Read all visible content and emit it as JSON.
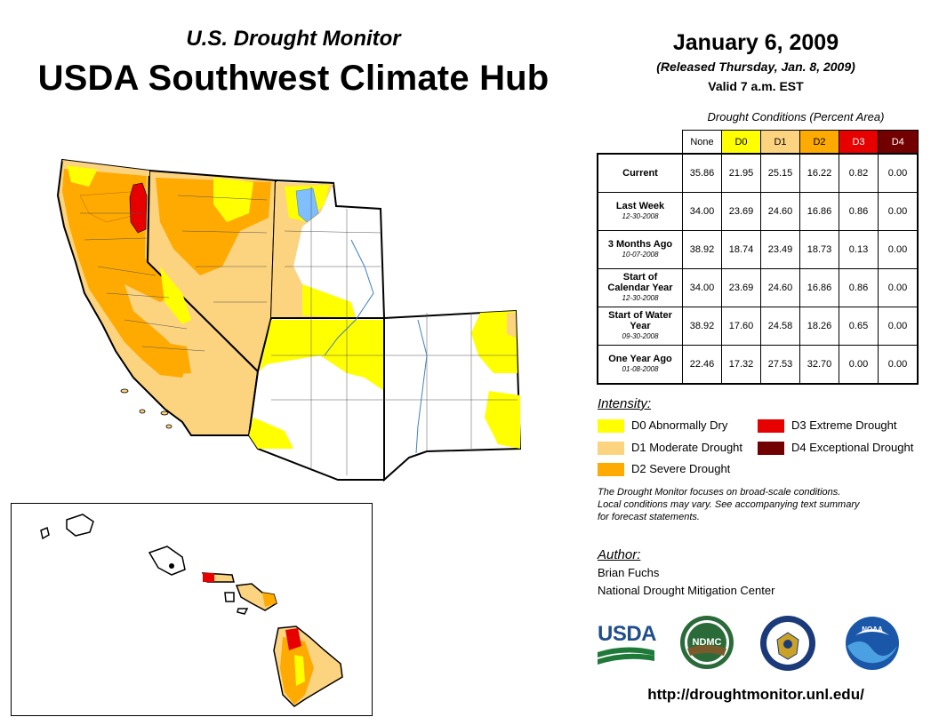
{
  "header": {
    "subtitle": "U.S. Drought Monitor",
    "title": "USDA Southwest Climate Hub",
    "date": "January 6, 2009",
    "released": "(Released Thursday, Jan. 8, 2009)",
    "valid": "Valid 7 a.m. EST"
  },
  "table": {
    "caption": "Drought Conditions (Percent Area)",
    "columns": [
      "None",
      "D0",
      "D1",
      "D2",
      "D3",
      "D4"
    ],
    "column_colors": [
      "#ffffff",
      "#ffff00",
      "#fcd37f",
      "#ffaa00",
      "#e60000",
      "#730000"
    ],
    "rows": [
      {
        "label": "Current",
        "sub": "",
        "values": [
          "35.86",
          "21.95",
          "25.15",
          "16.22",
          "0.82",
          "0.00"
        ]
      },
      {
        "label": "Last Week",
        "sub": "12-30-2008",
        "values": [
          "34.00",
          "23.69",
          "24.60",
          "16.86",
          "0.86",
          "0.00"
        ]
      },
      {
        "label": "3 Months Ago",
        "sub": "10-07-2008",
        "values": [
          "38.92",
          "18.74",
          "23.49",
          "18.73",
          "0.13",
          "0.00"
        ]
      },
      {
        "label": "Start of Calendar Year",
        "sub": "12-30-2008",
        "values": [
          "34.00",
          "23.69",
          "24.60",
          "16.86",
          "0.86",
          "0.00"
        ]
      },
      {
        "label": "Start of Water Year",
        "sub": "09-30-2008",
        "values": [
          "38.92",
          "17.60",
          "24.58",
          "18.26",
          "0.65",
          "0.00"
        ]
      },
      {
        "label": "One Year Ago",
        "sub": "01-08-2008",
        "values": [
          "22.46",
          "17.32",
          "27.53",
          "32.70",
          "0.00",
          "0.00"
        ]
      }
    ]
  },
  "legend": {
    "title": "Intensity:",
    "items": [
      {
        "label": "D0 Abnormally Dry",
        "color": "#ffff00"
      },
      {
        "label": "D1 Moderate Drought",
        "color": "#fcd37f"
      },
      {
        "label": "D2 Severe Drought",
        "color": "#ffaa00"
      },
      {
        "label": "D3 Extreme Drought",
        "color": "#e60000"
      },
      {
        "label": "D4 Exceptional Drought",
        "color": "#730000"
      }
    ]
  },
  "note": [
    "The Drought Monitor focuses on broad-scale conditions.",
    "Local conditions may vary. See accompanying text summary",
    "for forecast statements."
  ],
  "author": {
    "title": "Author:",
    "name": "Brian Fuchs",
    "org": "National Drought Mitigation Center"
  },
  "logos": {
    "usda": "USDA",
    "ndmc": "NDMC",
    "noaa": "NOAA"
  },
  "url": "http://droughtmonitor.unl.edu/"
}
